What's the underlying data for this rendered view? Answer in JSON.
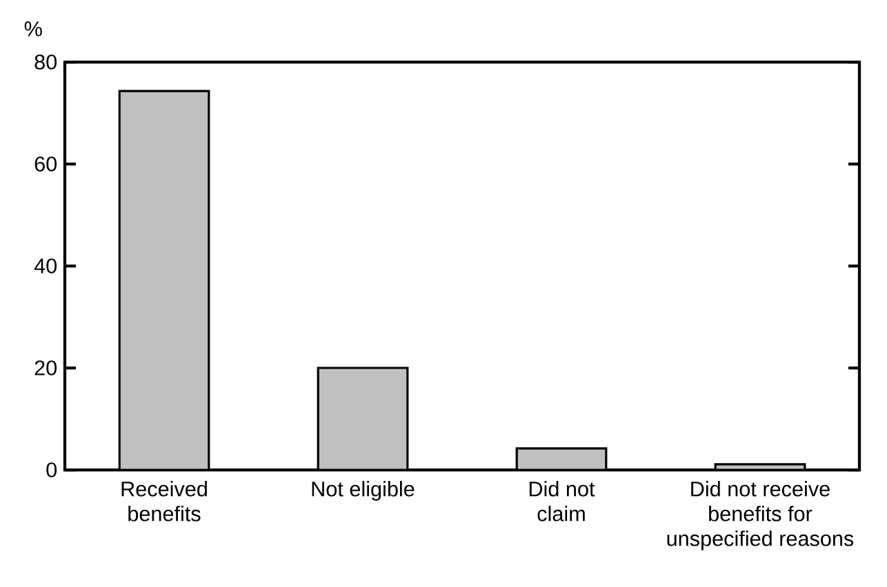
{
  "chart_data": {
    "type": "bar",
    "ylabel": "%",
    "categories": [
      "Received benefits",
      "Not eligible",
      "Did not claim",
      "Did not receive benefits for unspecified reasons"
    ],
    "values": [
      74.3,
      20,
      4.2,
      1.1
    ],
    "color": "#c0c0c0",
    "ylim": [
      0,
      80
    ],
    "yticks": [
      0,
      20,
      40,
      60,
      80
    ],
    "grid": false
  }
}
